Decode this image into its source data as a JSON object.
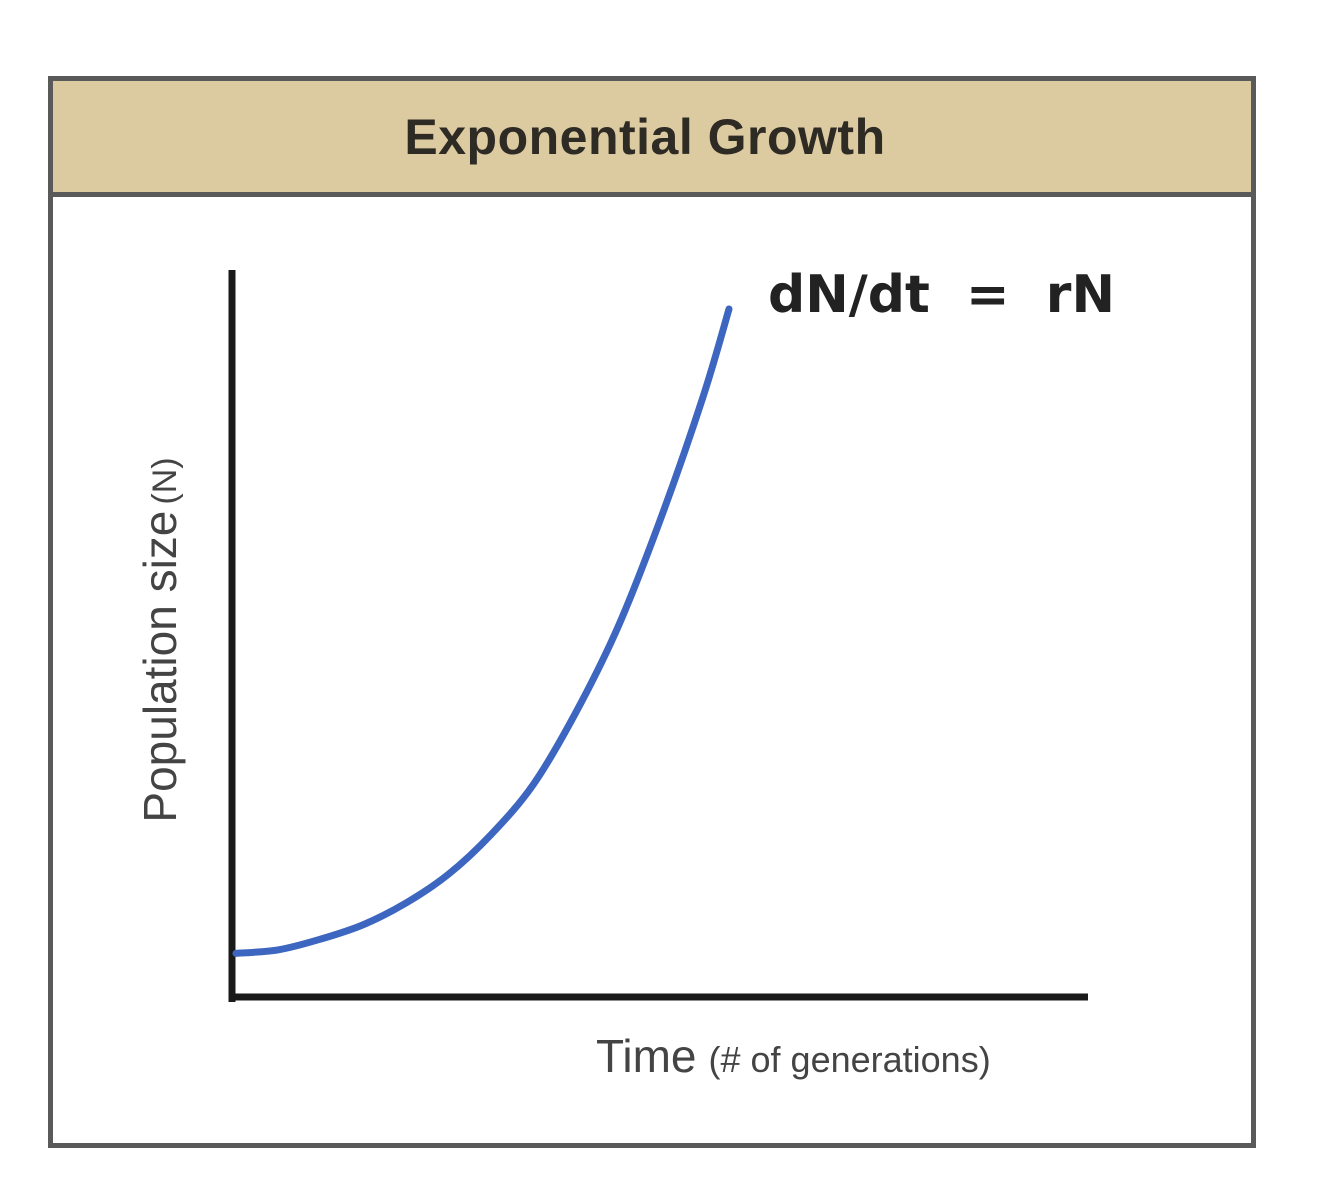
{
  "chart_data": {
    "type": "line",
    "title": "Exponential Growth",
    "equation": "dN/dt  =  rN",
    "xlabel_main": "Time",
    "xlabel_sub": "(# of generations)",
    "ylabel_main": "Population size",
    "ylabel_sub": "(N)",
    "xlim": [
      0,
      10
    ],
    "ylim": [
      0,
      10
    ],
    "grid": false,
    "series": [
      {
        "name": "Exponential growth curve",
        "color": "#3d66c0",
        "x": [
          0,
          0.5,
          1.0,
          1.5,
          2.0,
          2.5,
          3.0,
          3.5,
          4.0,
          4.5,
          5.0,
          5.5,
          5.8
        ],
        "y": [
          0.55,
          0.6,
          0.75,
          0.95,
          1.25,
          1.65,
          2.2,
          2.9,
          3.9,
          5.1,
          6.6,
          8.3,
          9.5
        ]
      }
    ]
  },
  "colors": {
    "header_bg": "#dccaa0",
    "frame_border": "#5a5a5a",
    "axis": "#1a1a1a",
    "curve": "#3d66c0"
  }
}
